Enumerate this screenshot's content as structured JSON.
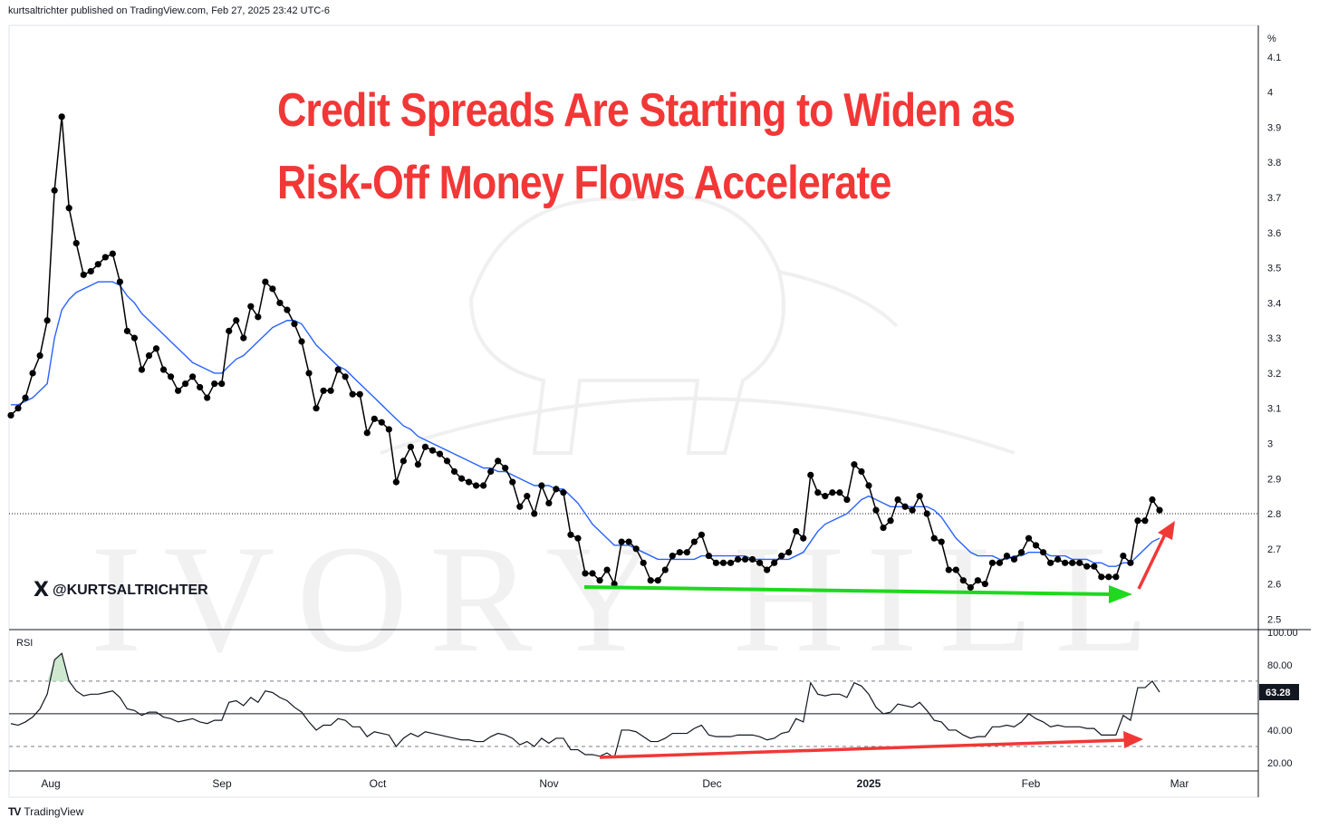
{
  "header": {
    "published": "kurtsaltrichter published on TradingView.com, Feb 27, 2025 23:42 UTC-6"
  },
  "footer": {
    "logo_text": "TV",
    "brand": "TradingView"
  },
  "annotation": {
    "title_line1": "Credit Spreads Are Starting to Widen as",
    "title_line2": "Risk-Off Money Flows Accelerate",
    "handle": "@KURTSALTRICHTER",
    "x_logo": "X"
  },
  "colors": {
    "price_line": "#000000",
    "moving_average": "#2962ff",
    "title": "#f23737",
    "support_arrow": "#1fd81f",
    "rsi_arrow": "#f23737",
    "overbought_fill": "#c8e6c9"
  },
  "chart_data": [
    {
      "type": "line",
      "pane": "price",
      "unit_label": "%",
      "ylim": [
        2.47,
        4.19
      ],
      "yticks": [
        "4.1",
        "4",
        "3.9",
        "3.8",
        "3.7",
        "3.6",
        "3.5",
        "3.4",
        "3.3",
        "3.2",
        "3.1",
        "3",
        "2.9",
        "2.8",
        "2.7",
        "2.6",
        "2.5"
      ],
      "xticks": [
        "Aug",
        "Sep",
        "Oct",
        "Nov",
        "Dec",
        "2025",
        "Feb",
        "Mar"
      ],
      "reference_level": 2.8,
      "series": [
        {
          "values": [
            3.08,
            3.1,
            3.13,
            3.2,
            3.25,
            3.35,
            3.72,
            3.93,
            3.67,
            3.57,
            3.48,
            3.49,
            3.51,
            3.53,
            3.54,
            3.46,
            3.32,
            3.3,
            3.21,
            3.25,
            3.27,
            3.21,
            3.19,
            3.15,
            3.17,
            3.19,
            3.16,
            3.13,
            3.17,
            3.17,
            3.32,
            3.35,
            3.3,
            3.39,
            3.36,
            3.46,
            3.44,
            3.4,
            3.38,
            3.34,
            3.29,
            3.2,
            3.1,
            3.15,
            3.15,
            3.21,
            3.19,
            3.14,
            3.14,
            3.03,
            3.07,
            3.06,
            3.04,
            2.89,
            2.95,
            2.99,
            2.94,
            2.99,
            2.98,
            2.97,
            2.95,
            2.92,
            2.9,
            2.89,
            2.88,
            2.88,
            2.92,
            2.95,
            2.93,
            2.89,
            2.82,
            2.85,
            2.8,
            2.88,
            2.83,
            2.87,
            2.86,
            2.74,
            2.73,
            2.63,
            2.63,
            2.61,
            2.64,
            2.6,
            2.72,
            2.72,
            2.7,
            2.66,
            2.61,
            2.61,
            2.64,
            2.68,
            2.69,
            2.69,
            2.72,
            2.74,
            2.68,
            2.66,
            2.66,
            2.66,
            2.67,
            2.67,
            2.67,
            2.66,
            2.64,
            2.66,
            2.68,
            2.69,
            2.75,
            2.73,
            2.91,
            2.86,
            2.85,
            2.86,
            2.86,
            2.84,
            2.94,
            2.92,
            2.88,
            2.81,
            2.76,
            2.78,
            2.84,
            2.82,
            2.81,
            2.85,
            2.8,
            2.73,
            2.72,
            2.64,
            2.64,
            2.61,
            2.59,
            2.61,
            2.6,
            2.66,
            2.66,
            2.68,
            2.67,
            2.69,
            2.73,
            2.71,
            2.69,
            2.66,
            2.67,
            2.66,
            2.66,
            2.66,
            2.65,
            2.65,
            2.62,
            2.62,
            2.62,
            2.68,
            2.66,
            2.78,
            2.78,
            2.84,
            2.81
          ]
        },
        {
          "values": [
            3.11,
            3.11,
            3.12,
            3.13,
            3.15,
            3.17,
            3.3,
            3.38,
            3.41,
            3.43,
            3.44,
            3.45,
            3.46,
            3.46,
            3.46,
            3.45,
            3.42,
            3.4,
            3.37,
            3.35,
            3.33,
            3.31,
            3.29,
            3.27,
            3.25,
            3.23,
            3.22,
            3.21,
            3.2,
            3.2,
            3.22,
            3.24,
            3.25,
            3.27,
            3.29,
            3.31,
            3.33,
            3.34,
            3.35,
            3.35,
            3.34,
            3.31,
            3.28,
            3.26,
            3.24,
            3.22,
            3.21,
            3.19,
            3.17,
            3.15,
            3.13,
            3.11,
            3.09,
            3.07,
            3.05,
            3.04,
            3.02,
            3.01,
            3.0,
            2.99,
            2.98,
            2.97,
            2.96,
            2.95,
            2.94,
            2.93,
            2.93,
            2.92,
            2.92,
            2.91,
            2.9,
            2.89,
            2.88,
            2.88,
            2.88,
            2.87,
            2.87,
            2.85,
            2.83,
            2.8,
            2.77,
            2.75,
            2.73,
            2.71,
            2.71,
            2.71,
            2.7,
            2.69,
            2.68,
            2.67,
            2.67,
            2.67,
            2.67,
            2.67,
            2.67,
            2.68,
            2.68,
            2.68,
            2.68,
            2.68,
            2.68,
            2.68,
            2.67,
            2.67,
            2.67,
            2.67,
            2.67,
            2.67,
            2.68,
            2.69,
            2.72,
            2.75,
            2.77,
            2.78,
            2.79,
            2.8,
            2.82,
            2.84,
            2.85,
            2.84,
            2.83,
            2.82,
            2.82,
            2.82,
            2.82,
            2.82,
            2.82,
            2.81,
            2.79,
            2.76,
            2.73,
            2.71,
            2.69,
            2.68,
            2.68,
            2.68,
            2.67,
            2.67,
            2.68,
            2.68,
            2.69,
            2.69,
            2.69,
            2.68,
            2.68,
            2.68,
            2.67,
            2.67,
            2.67,
            2.66,
            2.66,
            2.65,
            2.65,
            2.66,
            2.66,
            2.68,
            2.7,
            2.72,
            2.73
          ]
        }
      ]
    },
    {
      "type": "line",
      "pane": "indicator",
      "title": "RSI",
      "ylim": [
        15,
        101
      ],
      "yticks": [
        "100.00",
        "80.00",
        "40.00",
        "20.00"
      ],
      "last_value_label": "63.28",
      "overbought": 70,
      "midline": 50,
      "oversold": 30,
      "series": [
        {
          "values": [
            44,
            43,
            45,
            48,
            53,
            62,
            83,
            87,
            70,
            64,
            61,
            62,
            62,
            63,
            64,
            60,
            53,
            52,
            49,
            51,
            51,
            48,
            47,
            45,
            46,
            47,
            45,
            44,
            46,
            46,
            57,
            58,
            55,
            60,
            57,
            64,
            63,
            60,
            58,
            54,
            51,
            45,
            40,
            43,
            43,
            47,
            46,
            42,
            42,
            36,
            39,
            38,
            37,
            30,
            35,
            38,
            36,
            39,
            38,
            37,
            36,
            35,
            34,
            34,
            33,
            33,
            36,
            38,
            37,
            35,
            31,
            33,
            30,
            35,
            32,
            35,
            35,
            28,
            28,
            25,
            25,
            24,
            26,
            23,
            40,
            40,
            39,
            36,
            33,
            33,
            35,
            38,
            38,
            38,
            41,
            43,
            37,
            36,
            36,
            36,
            37,
            37,
            37,
            36,
            34,
            35,
            38,
            39,
            47,
            45,
            69,
            62,
            61,
            62,
            62,
            60,
            69,
            67,
            62,
            54,
            50,
            51,
            56,
            55,
            54,
            57,
            52,
            46,
            45,
            40,
            40,
            37,
            35,
            36,
            36,
            42,
            42,
            43,
            42,
            45,
            50,
            47,
            45,
            42,
            43,
            42,
            42,
            42,
            41,
            41,
            37,
            37,
            37,
            49,
            46,
            66,
            66,
            70,
            63.28
          ]
        }
      ]
    }
  ]
}
